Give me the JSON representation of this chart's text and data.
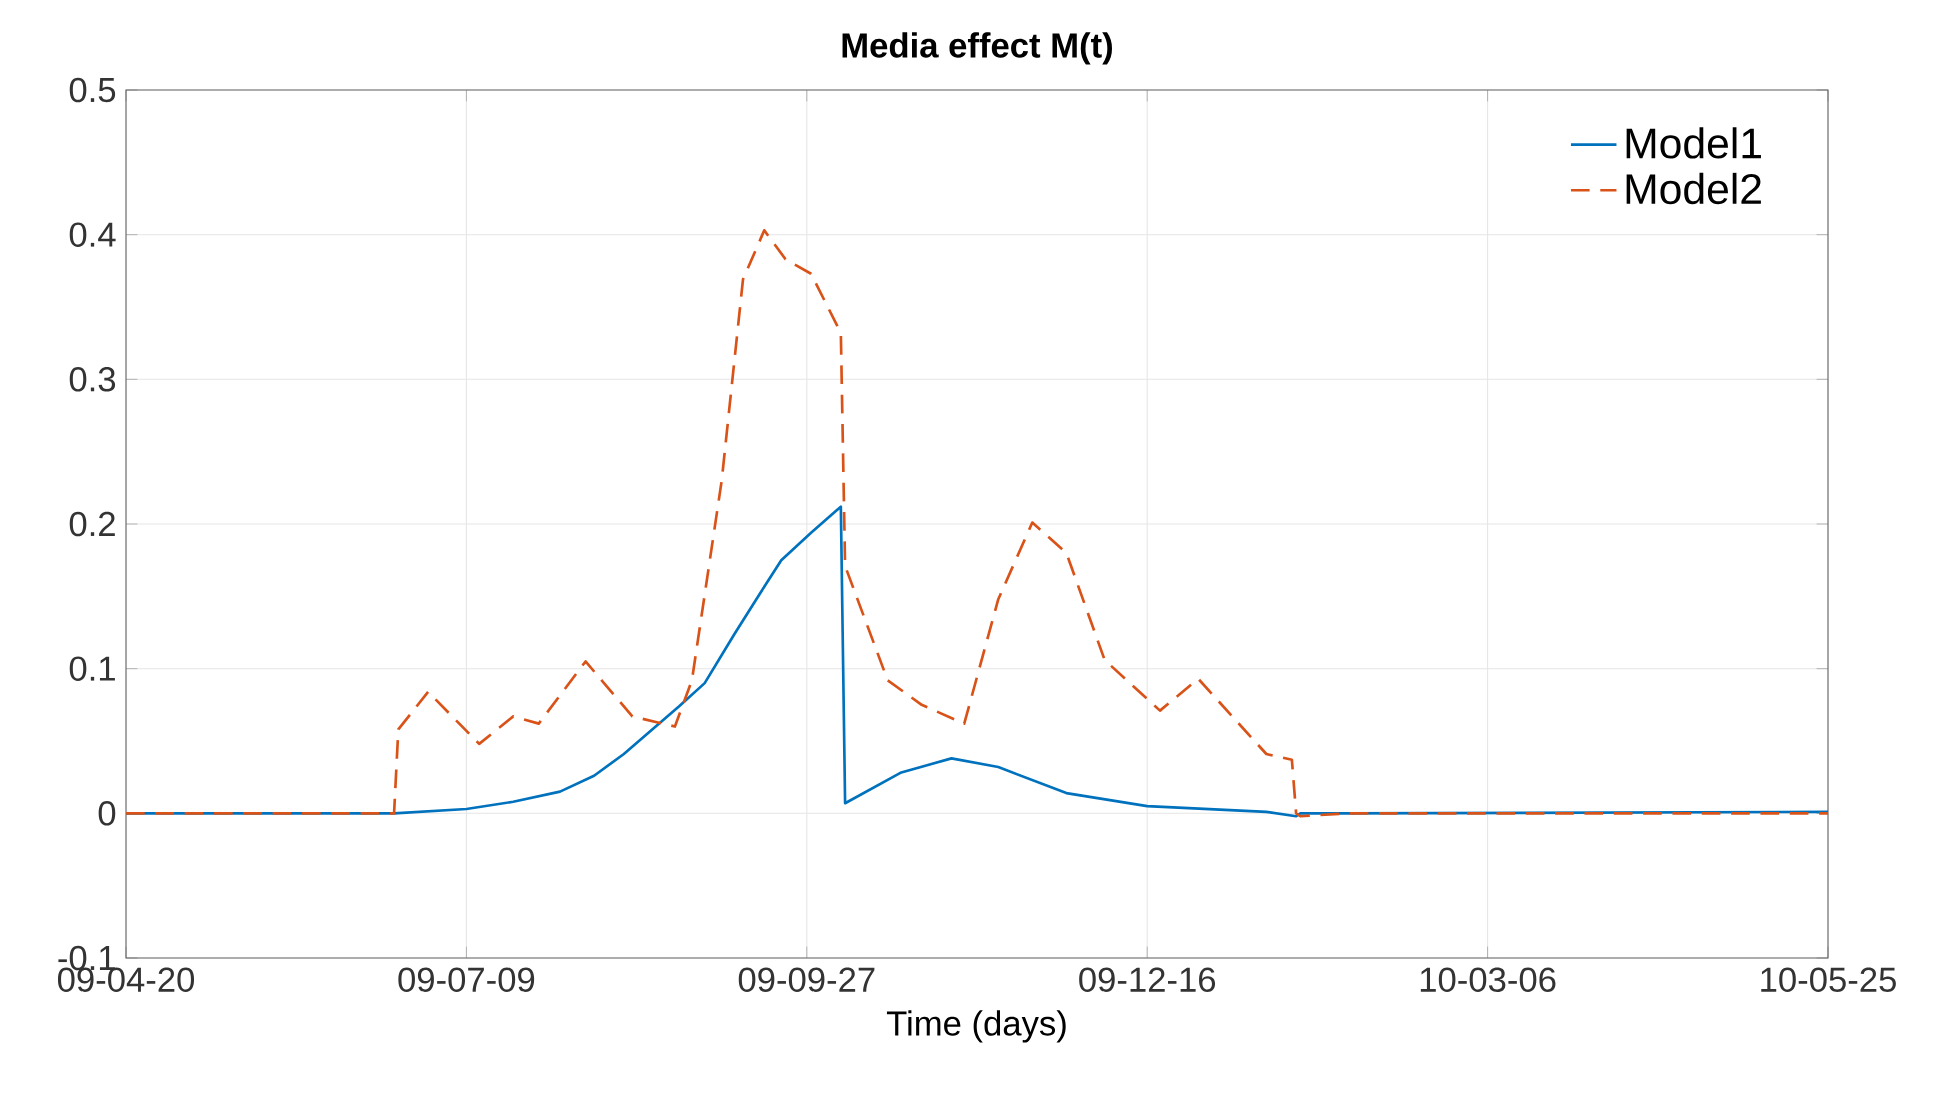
{
  "chart_data": {
    "type": "line",
    "title": "Media effect M(t)",
    "xlabel": "Time (days)",
    "xlim": [
      "2009-04-20",
      "2010-05-25"
    ],
    "xticks": [
      {
        "value": "2009-04-20",
        "label": "09-04-20"
      },
      {
        "value": "2009-07-09",
        "label": "09-07-09"
      },
      {
        "value": "2009-09-27",
        "label": "09-09-27"
      },
      {
        "value": "2009-12-16",
        "label": "09-12-16"
      },
      {
        "value": "2010-03-06",
        "label": "10-03-06"
      },
      {
        "value": "2010-05-25",
        "label": "10-05-25"
      }
    ],
    "ylim": [
      -0.1,
      0.5
    ],
    "yticks": [
      -0.1,
      0,
      0.1,
      0.2,
      0.3,
      0.4,
      0.5
    ],
    "grid": true,
    "legend": "top right",
    "series": [
      {
        "name": "Model1",
        "color": "#0072bd",
        "line_style": "solid",
        "x": [
          "2009-04-20",
          "2009-06-22",
          "2009-07-09",
          "2009-07-20",
          "2009-07-31",
          "2009-08-08",
          "2009-08-15",
          "2009-08-28",
          "2009-09-03",
          "2009-09-10",
          "2009-09-16",
          "2009-09-21",
          "2009-09-28",
          "2009-10-05",
          "2009-10-06",
          "2009-10-19",
          "2009-10-31",
          "2009-11-11",
          "2009-11-27",
          "2009-12-16",
          "2010-01-13",
          "2010-01-20",
          "2010-01-21",
          "2010-02-01",
          "2010-05-25"
        ],
        "values": [
          0,
          0,
          0.003,
          0.008,
          0.015,
          0.026,
          0.041,
          0.074,
          0.09,
          0.124,
          0.152,
          0.175,
          0.194,
          0.212,
          0.007,
          0.028,
          0.038,
          0.032,
          0.014,
          0.005,
          0.001,
          -0.002,
          0,
          0,
          0.001
        ]
      },
      {
        "name": "Model2",
        "color": "#d95319",
        "line_style": "dashed",
        "x": [
          "2009-04-20",
          "2009-06-22",
          "2009-06-23",
          "2009-06-30",
          "2009-07-12",
          "2009-07-20",
          "2009-07-26",
          "2009-08-06",
          "2009-08-17",
          "2009-08-27",
          "2009-08-31",
          "2009-09-07",
          "2009-09-12",
          "2009-09-17",
          "2009-09-22",
          "2009-09-28",
          "2009-10-05",
          "2009-10-06",
          "2009-10-16",
          "2009-10-24",
          "2009-11-03",
          "2009-11-11",
          "2009-11-19",
          "2009-11-27",
          "2009-12-06",
          "2009-12-19",
          "2009-12-28",
          "2010-01-13",
          "2010-01-19",
          "2010-01-20",
          "2010-01-21",
          "2010-02-01",
          "2010-05-25"
        ],
        "values": [
          0,
          0,
          0.058,
          0.084,
          0.048,
          0.067,
          0.062,
          0.105,
          0.067,
          0.06,
          0.092,
          0.23,
          0.369,
          0.403,
          0.383,
          0.373,
          0.332,
          0.171,
          0.092,
          0.075,
          0.062,
          0.148,
          0.201,
          0.18,
          0.106,
          0.071,
          0.093,
          0.041,
          0.037,
          0,
          -0.002,
          0,
          0
        ]
      }
    ]
  }
}
